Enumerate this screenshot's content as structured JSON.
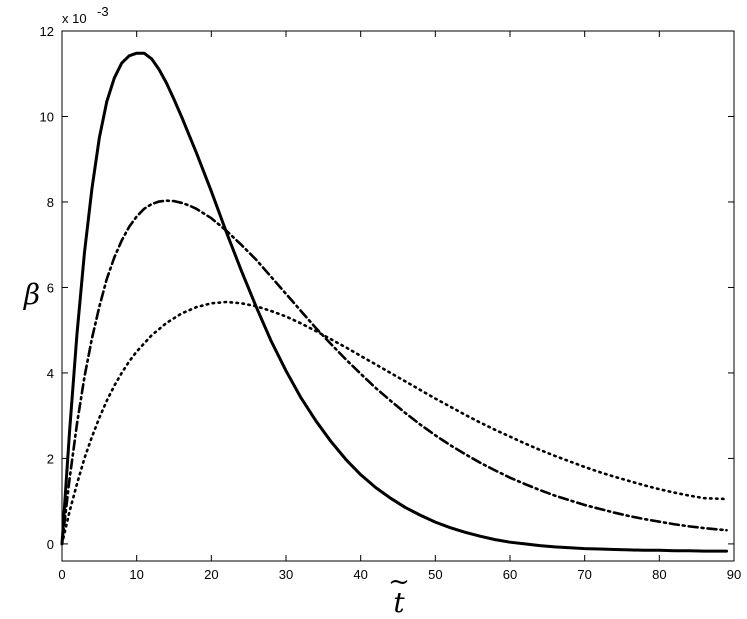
{
  "chart_data": {
    "type": "line",
    "title": "",
    "xlabel": "t",
    "xlabel_accent": "~",
    "ylabel": "β",
    "y_multiplier": {
      "base": "x 10",
      "exponent": "-3"
    },
    "xlim": [
      0,
      90
    ],
    "ylim": [
      -0.4,
      12
    ],
    "xticks": [
      0,
      10,
      20,
      30,
      40,
      50,
      60,
      70,
      80,
      90
    ],
    "yticks": [
      0,
      2,
      4,
      6,
      8,
      10,
      12
    ],
    "grid": false,
    "legend": "none",
    "series": [
      {
        "style": "solid",
        "x": [
          0,
          1,
          2,
          3,
          4,
          5,
          6,
          7,
          8,
          9,
          10,
          11,
          12,
          13,
          14,
          15,
          16,
          18,
          20,
          22,
          24,
          26,
          28,
          30,
          32,
          34,
          36,
          38,
          40,
          42,
          44,
          46,
          48,
          50,
          52,
          54,
          56,
          58,
          60,
          62,
          64,
          66,
          68,
          70,
          72,
          74,
          76,
          78,
          80,
          82,
          84,
          86,
          89
        ],
        "y": [
          0,
          2.6,
          4.9,
          6.8,
          8.3,
          9.5,
          10.35,
          10.9,
          11.25,
          11.42,
          11.48,
          11.48,
          11.35,
          11.1,
          10.78,
          10.4,
          10.0,
          9.15,
          8.25,
          7.3,
          6.4,
          5.55,
          4.75,
          4.05,
          3.42,
          2.88,
          2.4,
          1.98,
          1.62,
          1.32,
          1.07,
          0.85,
          0.67,
          0.51,
          0.38,
          0.27,
          0.18,
          0.1,
          0.04,
          0.0,
          -0.04,
          -0.07,
          -0.09,
          -0.11,
          -0.12,
          -0.13,
          -0.14,
          -0.15,
          -0.15,
          -0.16,
          -0.16,
          -0.17,
          -0.17
        ]
      },
      {
        "style": "dashdot",
        "x": [
          0,
          1,
          2,
          3,
          4,
          5,
          6,
          7,
          8,
          9,
          10,
          11,
          12,
          13,
          14,
          15,
          16,
          17,
          18,
          20,
          22,
          24,
          26,
          28,
          30,
          32,
          34,
          36,
          38,
          40,
          42,
          44,
          46,
          48,
          50,
          52,
          54,
          56,
          58,
          60,
          62,
          64,
          66,
          68,
          70,
          72,
          74,
          76,
          78,
          80,
          82,
          84,
          86,
          89
        ],
        "y": [
          0,
          1.5,
          2.8,
          3.9,
          4.8,
          5.55,
          6.2,
          6.7,
          7.1,
          7.42,
          7.66,
          7.84,
          7.95,
          8.01,
          8.03,
          8.02,
          7.98,
          7.92,
          7.84,
          7.62,
          7.33,
          7.0,
          6.65,
          6.25,
          5.85,
          5.45,
          5.05,
          4.68,
          4.32,
          3.98,
          3.65,
          3.35,
          3.06,
          2.79,
          2.54,
          2.31,
          2.1,
          1.9,
          1.72,
          1.55,
          1.4,
          1.26,
          1.13,
          1.02,
          0.91,
          0.82,
          0.73,
          0.65,
          0.58,
          0.52,
          0.46,
          0.41,
          0.37,
          0.32
        ]
      },
      {
        "style": "dotted",
        "x": [
          0,
          1,
          2,
          3,
          4,
          5,
          6,
          7,
          8,
          9,
          10,
          12,
          14,
          16,
          18,
          20,
          22,
          24,
          26,
          28,
          30,
          32,
          34,
          36,
          38,
          40,
          42,
          44,
          46,
          48,
          50,
          52,
          54,
          56,
          58,
          60,
          62,
          64,
          66,
          68,
          70,
          72,
          74,
          76,
          78,
          80,
          82,
          84,
          86,
          89
        ],
        "y": [
          0,
          0.75,
          1.4,
          2.0,
          2.5,
          2.95,
          3.35,
          3.7,
          4.0,
          4.27,
          4.5,
          4.88,
          5.17,
          5.39,
          5.54,
          5.63,
          5.66,
          5.63,
          5.56,
          5.45,
          5.32,
          5.16,
          4.98,
          4.79,
          4.6,
          4.4,
          4.2,
          4.0,
          3.8,
          3.6,
          3.4,
          3.21,
          3.02,
          2.84,
          2.67,
          2.51,
          2.35,
          2.2,
          2.06,
          1.93,
          1.8,
          1.68,
          1.57,
          1.47,
          1.37,
          1.28,
          1.2,
          1.13,
          1.07,
          1.05
        ]
      }
    ]
  }
}
